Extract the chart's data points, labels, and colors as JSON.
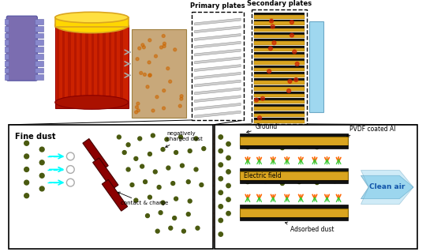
{
  "bg_color": "#f0f0f0",
  "left_panel_label": "Fine dust",
  "right_panel_label_ground": "Ground",
  "right_panel_label_pvdf": "PVDF coated Al",
  "right_panel_label_field": "Electric field",
  "right_panel_label_clean": "Clean air",
  "right_panel_label_adsorbed": "Adsorbed dust",
  "left_panel_label2": "negatively\ncharged dust",
  "left_panel_label3": "contact & charge",
  "primary_plates_label": "Primary plates",
  "secondary_plates_label": "Secondary plates",
  "motor_color": "#8888cc",
  "motor_fin_color": "#9999dd",
  "cyl_color": "#CC2200",
  "yellow_color": "#FFD700",
  "tan_color": "#C8A882",
  "plate_gray": "#c8c8c8",
  "gold_color": "#DAA520",
  "dust_outer": "#7a7a20",
  "dust_inner": "#4a5a10",
  "glow_orange": "#ff6600",
  "dark_red": "#8B0000"
}
